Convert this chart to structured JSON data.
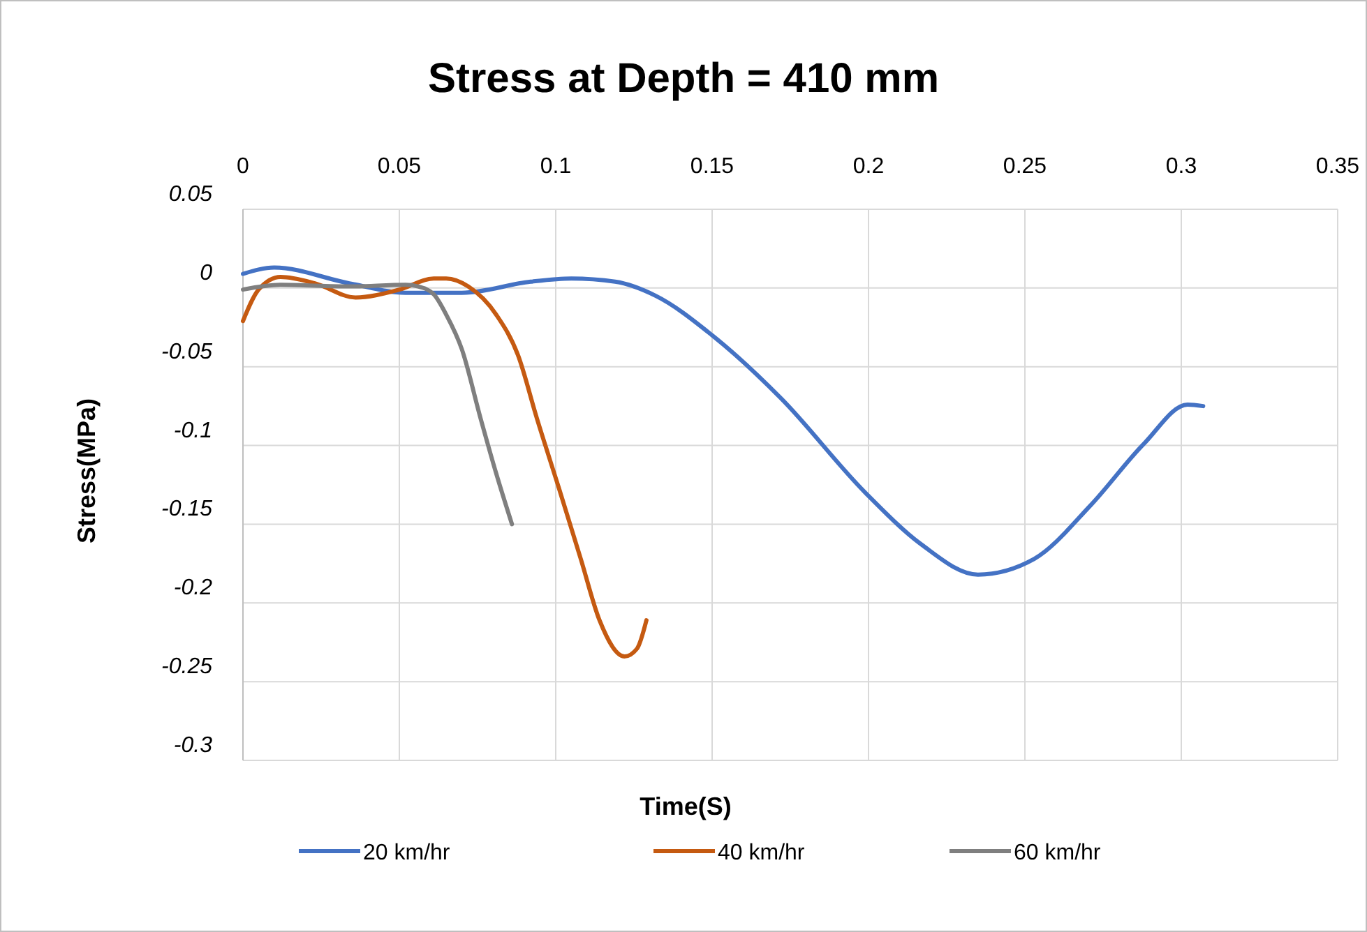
{
  "chart_data": {
    "type": "line",
    "title": "Stress at Depth = 410 mm",
    "xlabel": "Time(S)",
    "ylabel": "Stress(MPa)",
    "xlim": [
      0,
      0.35
    ],
    "xticks": [
      0,
      0.05,
      0.1,
      0.15,
      0.2,
      0.25,
      0.3,
      0.35
    ],
    "ylim": [
      -0.3,
      0.05
    ],
    "yticks": [
      0.05,
      0,
      -0.05,
      -0.1,
      -0.15,
      -0.2,
      -0.25,
      -0.3
    ],
    "grid": true,
    "legend": "bottom",
    "marker": "none",
    "line_style": "solid",
    "series": [
      {
        "name": "20 km/hr",
        "color": "#4472c4",
        "x": [
          0,
          0.01,
          0.034,
          0.052,
          0.07,
          0.092,
          0.105,
          0.119,
          0.132,
          0.15,
          0.172,
          0.199,
          0.217,
          0.235,
          0.253,
          0.271,
          0.288,
          0.302,
          0.307
        ],
        "values": [
          0.009,
          0.013,
          0.003,
          -0.003,
          -0.003,
          0.004,
          0.006,
          0.004,
          -0.005,
          -0.03,
          -0.07,
          -0.13,
          -0.163,
          -0.182,
          -0.172,
          -0.138,
          -0.099,
          -0.074,
          -0.075
        ]
      },
      {
        "name": "40 km/hr",
        "color": "#c55a11",
        "x": [
          0,
          0.005,
          0.012,
          0.023,
          0.036,
          0.05,
          0.061,
          0.065,
          0.072,
          0.081,
          0.088,
          0.094,
          0.101,
          0.108,
          0.114,
          0.122,
          0.126,
          0.129
        ],
        "values": [
          -0.021,
          -0.001,
          0.007,
          0.003,
          -0.006,
          -0.001,
          0.006,
          0.006,
          0.001,
          -0.017,
          -0.043,
          -0.083,
          -0.127,
          -0.172,
          -0.211,
          -0.234,
          -0.229,
          -0.211
        ]
      },
      {
        "name": "60 km/hr",
        "color": "#7f7f7f",
        "x": [
          0,
          0.012,
          0.034,
          0.052,
          0.056,
          0.061,
          0.065,
          0.07,
          0.076,
          0.081,
          0.086
        ],
        "values": [
          -0.001,
          0.002,
          0.001,
          0.002,
          0.001,
          -0.004,
          -0.017,
          -0.039,
          -0.083,
          -0.118,
          -0.15
        ]
      }
    ]
  }
}
